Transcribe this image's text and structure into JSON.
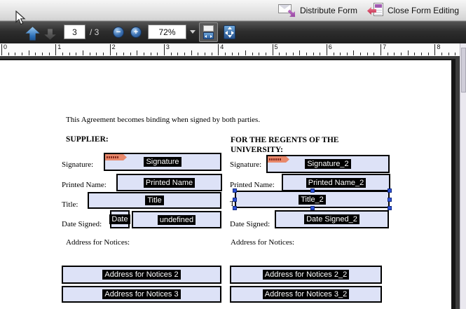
{
  "top_bar": {
    "distribute_button": "Distribute Form",
    "close_button": "Close Form Editing"
  },
  "toolbar": {
    "page_current": "3",
    "page_total": "/ 3",
    "zoom_out_glyph": "−",
    "zoom_in_glyph": "+",
    "zoom_level": "72%"
  },
  "ruler": {
    "unit_labels": [
      "0",
      "1",
      "2",
      "3",
      "4",
      "5",
      "6",
      "7",
      "8"
    ]
  },
  "page": {
    "intro_text": "This Agreement becomes binding when signed by both parties.",
    "supplier_heading": "SUPPLIER:",
    "regents_heading": "FOR THE REGENTS OF THE UNIVERSITY:",
    "labels": {
      "signature": "Signature:",
      "printed_name": "Printed Name:",
      "title": "Title:",
      "date_signed": "Date Signed:",
      "address": "Address for Notices:"
    },
    "fields": {
      "left": {
        "signature": "Signature",
        "printed_name": "Printed Name",
        "title": "Title",
        "date": "Date",
        "date2": "undefined",
        "address2": "Address for Notices 2",
        "address3": "Address for Notices 3"
      },
      "right": {
        "signature": "Signature_2",
        "printed_name": "Printed Name_2",
        "title": "Title_2",
        "date_signed": "Date Signed_2",
        "address2": "Address for Notices 2_2",
        "address3": "Address for Notices 3_2"
      }
    }
  },
  "icons": {
    "distribute": "envelope-purple-arrow-icon",
    "close_form": "form-page-red-back-arrow-icon",
    "previous_page": "up-arrow-icon",
    "next_page": "down-arrow-icon",
    "zoom_out": "minus-circle-icon",
    "zoom_in": "plus-circle-icon",
    "scrolling_mode": "scrolling-pages-icon",
    "fit_page": "fit-page-icon",
    "sign_here": "sign-here-flag-icon"
  },
  "colors": {
    "field_fill": "#dde2f7",
    "field_border": "#000000",
    "selection_handle": "#2b50d8",
    "accent_purple": "#9b3f9b",
    "flag_salmon": "#e8886b",
    "toolbar_dark": "#2e2e2e"
  }
}
